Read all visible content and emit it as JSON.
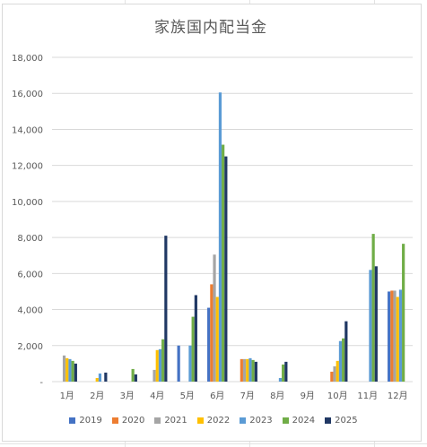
{
  "chart_data": {
    "type": "bar",
    "title": "家族国内配当金",
    "xlabel": "",
    "ylabel": "",
    "ylim": [
      0,
      18000
    ],
    "yticks": [
      "-",
      "2,000",
      "4,000",
      "6,000",
      "8,000",
      "10,000",
      "12,000",
      "14,000",
      "16,000",
      "18,000"
    ],
    "categories": [
      "1月",
      "2月",
      "3月",
      "4月",
      "5月",
      "6月",
      "7月",
      "8月",
      "9月",
      "10月",
      "11月",
      "12月"
    ],
    "grid": true,
    "legend_position": "bottom",
    "series": [
      {
        "name": "2019",
        "color": "#4472c4",
        "values": [
          0,
          0,
          0,
          0,
          2000,
          4100,
          0,
          0,
          0,
          0,
          0,
          5000
        ]
      },
      {
        "name": "2020",
        "color": "#ed7d31",
        "values": [
          0,
          0,
          0,
          0,
          0,
          5400,
          1250,
          0,
          0,
          550,
          0,
          5050
        ]
      },
      {
        "name": "2021",
        "color": "#a5a5a5",
        "values": [
          1450,
          0,
          0,
          650,
          0,
          7050,
          1250,
          0,
          0,
          850,
          0,
          5050
        ]
      },
      {
        "name": "2022",
        "color": "#ffc000",
        "values": [
          1300,
          200,
          0,
          1750,
          0,
          4700,
          1250,
          0,
          0,
          1150,
          0,
          4700
        ]
      },
      {
        "name": "2023",
        "color": "#5b9bd5",
        "values": [
          1250,
          450,
          0,
          1800,
          2000,
          16050,
          1300,
          200,
          0,
          2250,
          6200,
          5100
        ]
      },
      {
        "name": "2024",
        "color": "#70ad47",
        "values": [
          1150,
          0,
          700,
          2350,
          3600,
          13150,
          1200,
          950,
          0,
          2400,
          8200,
          7650
        ]
      },
      {
        "name": "2025",
        "color": "#203864",
        "values": [
          1000,
          500,
          400,
          8100,
          4800,
          12500,
          1100,
          1100,
          0,
          3350,
          6400,
          0
        ]
      }
    ]
  }
}
